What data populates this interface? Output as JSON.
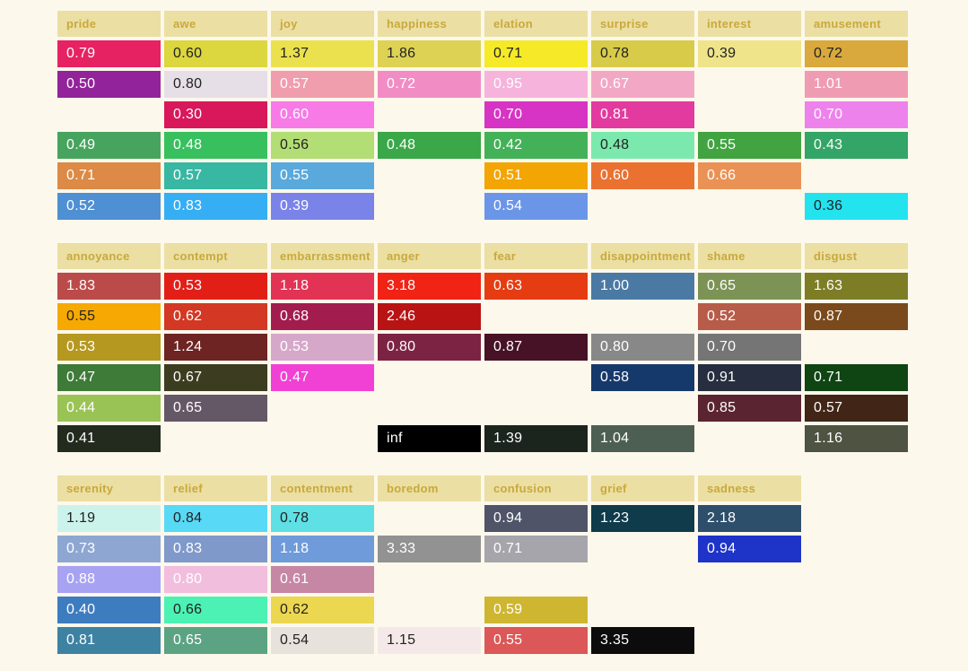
{
  "page": {
    "background": "#fdf8ec",
    "header_bg": "#ebdfa3",
    "header_text_color": "#c9a93c",
    "dark_text_color": "#222222",
    "light_text_color": "#ffffff"
  },
  "sections": [
    {
      "name": "emotion-group-1",
      "columns": [
        {
          "label": "pride",
          "cells": [
            {
              "v": "0.79",
              "bg": "#e62263",
              "dark": false
            },
            {
              "v": "0.50",
              "bg": "#93239a",
              "dark": false
            },
            null,
            {
              "v": "0.49",
              "bg": "#47a45e",
              "dark": false
            },
            {
              "v": "0.71",
              "bg": "#dc8a45",
              "dark": false
            },
            {
              "v": "0.52",
              "bg": "#4f8fd3",
              "dark": false
            }
          ]
        },
        {
          "label": "awe",
          "cells": [
            {
              "v": "0.60",
              "bg": "#dcd63f",
              "dark": true
            },
            {
              "v": "0.80",
              "bg": "#e6dfe7",
              "dark": true
            },
            {
              "v": "0.30",
              "bg": "#d8185a",
              "dark": false
            },
            {
              "v": "0.48",
              "bg": "#38c05e",
              "dark": false
            },
            {
              "v": "0.57",
              "bg": "#38b7a3",
              "dark": false
            },
            {
              "v": "0.83",
              "bg": "#35aef3",
              "dark": false
            }
          ]
        },
        {
          "label": "joy",
          "cells": [
            {
              "v": "1.37",
              "bg": "#ebe14e",
              "dark": true
            },
            {
              "v": "0.57",
              "bg": "#f09dad",
              "dark": false
            },
            {
              "v": "0.60",
              "bg": "#f77ae6",
              "dark": false
            },
            {
              "v": "0.56",
              "bg": "#b3dd75",
              "dark": true
            },
            {
              "v": "0.55",
              "bg": "#5aa9dc",
              "dark": false
            },
            {
              "v": "0.39",
              "bg": "#7a83e8",
              "dark": false
            }
          ]
        },
        {
          "label": "happiness",
          "cells": [
            {
              "v": "1.86",
              "bg": "#ded254",
              "dark": true
            },
            {
              "v": "0.72",
              "bg": "#f28cc4",
              "dark": false
            },
            null,
            {
              "v": "0.48",
              "bg": "#3aa748",
              "dark": false
            },
            null,
            null
          ]
        },
        {
          "label": "elation",
          "cells": [
            {
              "v": "0.71",
              "bg": "#f6e928",
              "dark": true
            },
            {
              "v": "0.95",
              "bg": "#f6b3dc",
              "dark": false
            },
            {
              "v": "0.70",
              "bg": "#d733c4",
              "dark": false
            },
            {
              "v": "0.42",
              "bg": "#43b158",
              "dark": false
            },
            {
              "v": "0.51",
              "bg": "#f3a504",
              "dark": false
            },
            {
              "v": "0.54",
              "bg": "#6b96e8",
              "dark": false
            }
          ]
        },
        {
          "label": "surprise",
          "cells": [
            {
              "v": "0.78",
              "bg": "#d8cb49",
              "dark": true
            },
            {
              "v": "0.67",
              "bg": "#f2a8c4",
              "dark": false
            },
            {
              "v": "0.81",
              "bg": "#e23a9f",
              "dark": false
            },
            {
              "v": "0.48",
              "bg": "#7be9ad",
              "dark": true
            },
            {
              "v": "0.60",
              "bg": "#ea7130",
              "dark": false
            },
            null
          ]
        },
        {
          "label": "interest",
          "cells": [
            {
              "v": "0.39",
              "bg": "#efe48a",
              "dark": true
            },
            null,
            null,
            {
              "v": "0.55",
              "bg": "#41a441",
              "dark": false
            },
            {
              "v": "0.66",
              "bg": "#ea9255",
              "dark": false
            },
            null
          ]
        },
        {
          "label": "amusement",
          "cells": [
            {
              "v": "0.72",
              "bg": "#d9a93d",
              "dark": true
            },
            {
              "v": "1.01",
              "bg": "#ef9cb3",
              "dark": false
            },
            {
              "v": "0.70",
              "bg": "#ee82ec",
              "dark": false
            },
            {
              "v": "0.43",
              "bg": "#33a566",
              "dark": false
            },
            null,
            {
              "v": "0.36",
              "bg": "#23e3ef",
              "dark": true
            }
          ]
        }
      ]
    },
    {
      "name": "emotion-group-2",
      "columns": [
        {
          "label": "annoyance",
          "cells": [
            {
              "v": "1.83",
              "bg": "#bb4b49",
              "dark": false
            },
            {
              "v": "0.55",
              "bg": "#f5a902",
              "dark": true
            },
            {
              "v": "0.53",
              "bg": "#b5981f",
              "dark": false
            },
            {
              "v": "0.47",
              "bg": "#3e7a38",
              "dark": false
            },
            {
              "v": "0.44",
              "bg": "#9ac355",
              "dark": false
            },
            {
              "v": "0.41",
              "bg": "#232b1f",
              "dark": false
            }
          ]
        },
        {
          "label": "contempt",
          "cells": [
            {
              "v": "0.53",
              "bg": "#e21f17",
              "dark": false
            },
            {
              "v": "0.62",
              "bg": "#d23823",
              "dark": false
            },
            {
              "v": "1.24",
              "bg": "#6e2422",
              "dark": false
            },
            {
              "v": "0.67",
              "bg": "#3c3c20",
              "dark": false
            },
            {
              "v": "0.65",
              "bg": "#655866",
              "dark": false
            },
            null
          ]
        },
        {
          "label": "embarrassment",
          "cells": [
            {
              "v": "1.18",
              "bg": "#e23355",
              "dark": false
            },
            {
              "v": "0.68",
              "bg": "#a21d4d",
              "dark": false
            },
            {
              "v": "0.53",
              "bg": "#d5a8ca",
              "dark": false
            },
            {
              "v": "0.47",
              "bg": "#f041d4",
              "dark": false
            },
            null,
            null
          ]
        },
        {
          "label": "anger",
          "cells": [
            {
              "v": "3.18",
              "bg": "#f02315",
              "dark": false
            },
            {
              "v": "2.46",
              "bg": "#b91414",
              "dark": false
            },
            {
              "v": "0.80",
              "bg": "#7c2343",
              "dark": false
            },
            null,
            null,
            {
              "v": "inf",
              "bg": "#000000",
              "dark": false
            }
          ]
        },
        {
          "label": "fear",
          "cells": [
            {
              "v": "0.63",
              "bg": "#e53c12",
              "dark": false
            },
            null,
            {
              "v": "0.87",
              "bg": "#471226",
              "dark": false
            },
            null,
            null,
            {
              "v": "1.39",
              "bg": "#1b241d",
              "dark": false
            }
          ]
        },
        {
          "label": "disappointment",
          "cells": [
            {
              "v": "1.00",
              "bg": "#4a7aa4",
              "dark": false
            },
            null,
            {
              "v": "0.80",
              "bg": "#888888",
              "dark": false
            },
            {
              "v": "0.58",
              "bg": "#16396b",
              "dark": false
            },
            null,
            {
              "v": "1.04",
              "bg": "#4d5f52",
              "dark": false
            }
          ]
        },
        {
          "label": "shame",
          "cells": [
            {
              "v": "0.65",
              "bg": "#7c9355",
              "dark": false
            },
            {
              "v": "0.52",
              "bg": "#b75c48",
              "dark": false
            },
            {
              "v": "0.70",
              "bg": "#757575",
              "dark": false
            },
            {
              "v": "0.91",
              "bg": "#262e3f",
              "dark": false
            },
            {
              "v": "0.85",
              "bg": "#5a2430",
              "dark": false
            },
            null
          ]
        },
        {
          "label": "disgust",
          "cells": [
            {
              "v": "1.63",
              "bg": "#7d7d26",
              "dark": false
            },
            {
              "v": "0.87",
              "bg": "#7a4a1c",
              "dark": false
            },
            null,
            {
              "v": "0.71",
              "bg": "#0e4513",
              "dark": false
            },
            {
              "v": "0.57",
              "bg": "#412517",
              "dark": false
            },
            {
              "v": "1.16",
              "bg": "#4e5342",
              "dark": false
            }
          ]
        }
      ]
    },
    {
      "name": "emotion-group-3",
      "columns": [
        {
          "label": "serenity",
          "cells": [
            {
              "v": "1.19",
              "bg": "#ccf3eb",
              "dark": true
            },
            {
              "v": "0.73",
              "bg": "#8ea7d2",
              "dark": false
            },
            {
              "v": "0.88",
              "bg": "#a8a2f2",
              "dark": false
            },
            {
              "v": "0.40",
              "bg": "#3e7cc0",
              "dark": false
            },
            {
              "v": "0.81",
              "bg": "#3e82a2",
              "dark": false
            }
          ]
        },
        {
          "label": "relief",
          "cells": [
            {
              "v": "0.84",
              "bg": "#58d9f5",
              "dark": true
            },
            {
              "v": "0.83",
              "bg": "#8099cb",
              "dark": false
            },
            {
              "v": "0.80",
              "bg": "#f2bede",
              "dark": false
            },
            {
              "v": "0.66",
              "bg": "#4bf2b4",
              "dark": true
            },
            {
              "v": "0.65",
              "bg": "#5ba383",
              "dark": false
            }
          ]
        },
        {
          "label": "contentment",
          "cells": [
            {
              "v": "0.78",
              "bg": "#5fe0e4",
              "dark": true
            },
            {
              "v": "1.18",
              "bg": "#6f9bdb",
              "dark": false
            },
            {
              "v": "0.61",
              "bg": "#c687a4",
              "dark": false
            },
            {
              "v": "0.62",
              "bg": "#ecd751",
              "dark": true
            },
            {
              "v": "0.54",
              "bg": "#e8e2dd",
              "dark": true
            }
          ]
        },
        {
          "label": "boredom",
          "cells": [
            null,
            {
              "v": "3.33",
              "bg": "#929292",
              "dark": false
            },
            null,
            null,
            {
              "v": "1.15",
              "bg": "#f4e9e8",
              "dark": true
            }
          ]
        },
        {
          "label": "confusion",
          "cells": [
            {
              "v": "0.94",
              "bg": "#505468",
              "dark": false
            },
            {
              "v": "0.71",
              "bg": "#a5a5ab",
              "dark": false
            },
            null,
            {
              "v": "0.59",
              "bg": "#cfb630",
              "dark": false
            },
            {
              "v": "0.55",
              "bg": "#dc5757",
              "dark": false
            }
          ]
        },
        {
          "label": "grief",
          "cells": [
            {
              "v": "1.23",
              "bg": "#0f3b4b",
              "dark": false
            },
            null,
            null,
            null,
            {
              "v": "3.35",
              "bg": "#0c0c0c",
              "dark": false
            }
          ]
        },
        {
          "label": "sadness",
          "cells": [
            {
              "v": "2.18",
              "bg": "#2d4f6b",
              "dark": false
            },
            {
              "v": "0.94",
              "bg": "#1e33c8",
              "dark": false
            },
            null,
            null,
            null
          ]
        }
      ]
    }
  ],
  "chart_data": {
    "type": "table",
    "title": "",
    "groups": [
      {
        "columns": [
          "pride",
          "awe",
          "joy",
          "happiness",
          "elation",
          "surprise",
          "interest",
          "amusement"
        ],
        "rows": [
          [
            0.79,
            0.6,
            1.37,
            1.86,
            0.71,
            0.78,
            0.39,
            0.72
          ],
          [
            0.5,
            0.8,
            0.57,
            0.72,
            0.95,
            0.67,
            null,
            1.01
          ],
          [
            null,
            0.3,
            0.6,
            null,
            0.7,
            0.81,
            null,
            0.7
          ],
          [
            0.49,
            0.48,
            0.56,
            0.48,
            0.42,
            0.48,
            0.55,
            0.43
          ],
          [
            0.71,
            0.57,
            0.55,
            null,
            0.51,
            0.6,
            0.66,
            null
          ],
          [
            0.52,
            0.83,
            0.39,
            null,
            0.54,
            null,
            null,
            0.36
          ]
        ]
      },
      {
        "columns": [
          "annoyance",
          "contempt",
          "embarrassment",
          "anger",
          "fear",
          "disappointment",
          "shame",
          "disgust"
        ],
        "rows": [
          [
            1.83,
            0.53,
            1.18,
            3.18,
            0.63,
            1.0,
            0.65,
            1.63
          ],
          [
            0.55,
            0.62,
            0.68,
            2.46,
            null,
            null,
            0.52,
            0.87
          ],
          [
            0.53,
            1.24,
            0.53,
            0.8,
            0.87,
            0.8,
            0.7,
            null
          ],
          [
            0.47,
            0.67,
            0.47,
            null,
            null,
            0.58,
            0.91,
            0.71
          ],
          [
            0.44,
            0.65,
            null,
            null,
            null,
            null,
            0.85,
            0.57
          ],
          [
            0.41,
            null,
            null,
            "inf",
            1.39,
            1.04,
            null,
            1.16
          ]
        ]
      },
      {
        "columns": [
          "serenity",
          "relief",
          "contentment",
          "boredom",
          "confusion",
          "grief",
          "sadness"
        ],
        "rows": [
          [
            1.19,
            0.84,
            0.78,
            null,
            0.94,
            1.23,
            2.18
          ],
          [
            0.73,
            0.83,
            1.18,
            3.33,
            0.71,
            null,
            0.94
          ],
          [
            0.88,
            0.8,
            0.61,
            null,
            null,
            null,
            null
          ],
          [
            0.4,
            0.66,
            0.62,
            null,
            0.59,
            null,
            null
          ],
          [
            0.81,
            0.65,
            0.54,
            1.15,
            0.55,
            3.35,
            null
          ]
        ]
      }
    ],
    "legend_position": "none",
    "grid": false
  }
}
